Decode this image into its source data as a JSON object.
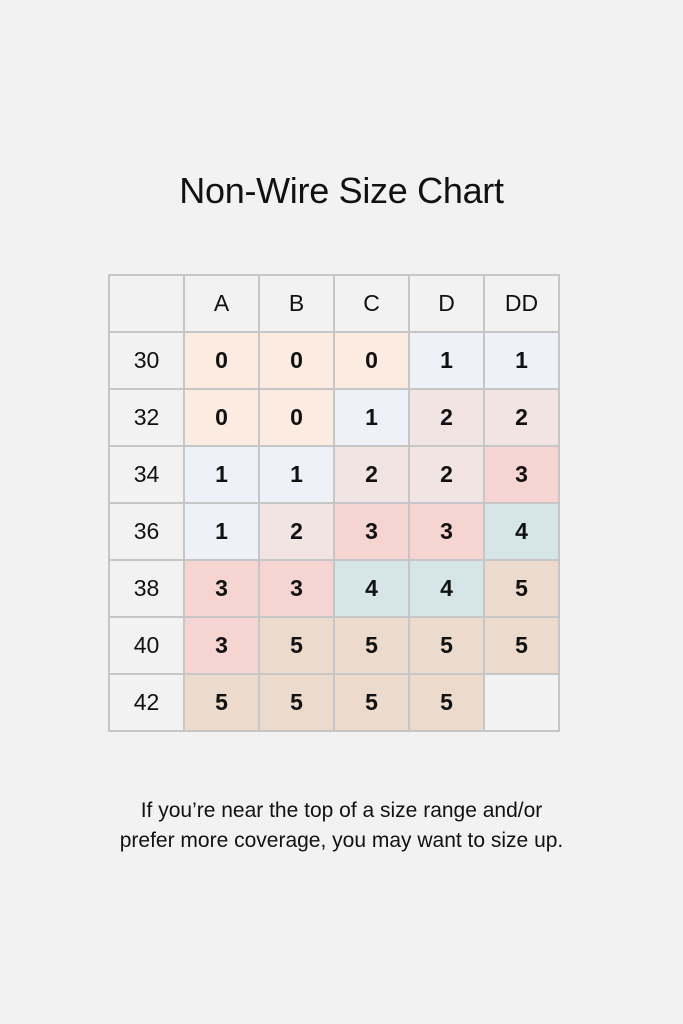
{
  "title": "Non-Wire Size Chart",
  "note_lines": [
    "If you’re near the top of a size range and/or",
    "prefer more coverage, you may want to size up."
  ],
  "colors": {
    "0": "#fbebe0",
    "1": "#eef2f8",
    "2": "#f1e4e3",
    "3": "#f6d4d2",
    "4": "#d5e5e8",
    "5": "#ecdbcc",
    "empty": "#f2f2f2"
  },
  "chart_data": {
    "type": "table",
    "title": "Non-Wire Size Chart",
    "columns": [
      "A",
      "B",
      "C",
      "D",
      "DD"
    ],
    "rows": [
      "30",
      "32",
      "34",
      "36",
      "38",
      "40",
      "42"
    ],
    "values": [
      [
        "0",
        "0",
        "0",
        "1",
        "1"
      ],
      [
        "0",
        "0",
        "1",
        "2",
        "2"
      ],
      [
        "1",
        "1",
        "2",
        "2",
        "3"
      ],
      [
        "1",
        "2",
        "3",
        "3",
        "4"
      ],
      [
        "3",
        "3",
        "4",
        "4",
        "5"
      ],
      [
        "3",
        "5",
        "5",
        "5",
        "5"
      ],
      [
        "5",
        "5",
        "5",
        "5",
        ""
      ]
    ]
  }
}
